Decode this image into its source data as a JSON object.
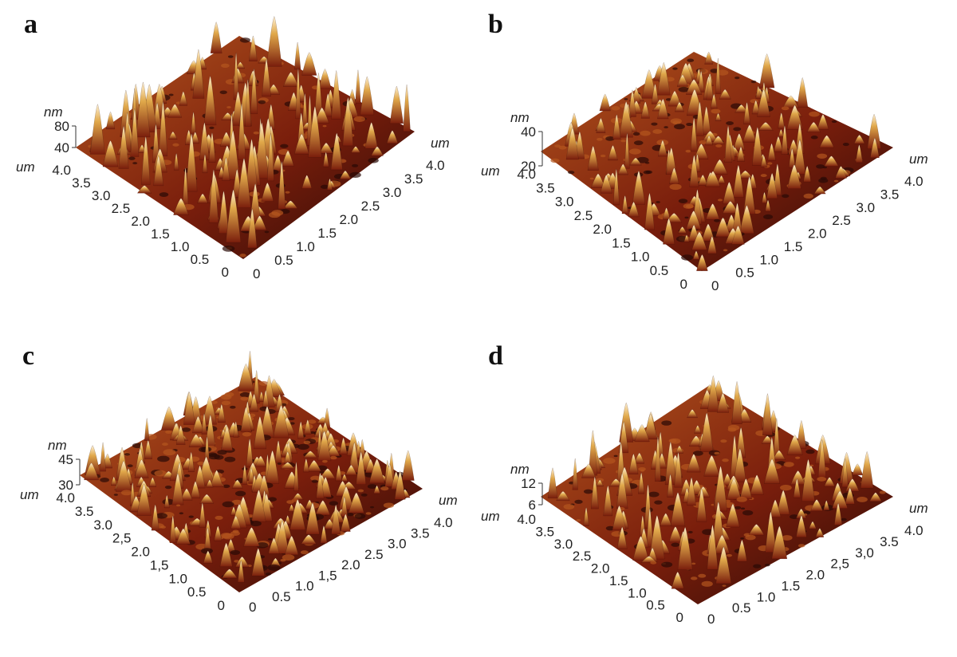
{
  "panels": [
    {
      "label": "a",
      "z_unit": "nm",
      "z_ticks": [
        "80",
        "40"
      ],
      "xy_unit": "um",
      "left_ticks": [
        "4.0",
        "3.5",
        "3.0",
        "2.5",
        "2.0",
        "1.5",
        "1.0",
        "0.5",
        "0"
      ],
      "right_ticks": [
        "0",
        "0.5",
        "1.0",
        "1.5",
        "2.0",
        "2.5",
        "3.0",
        "3.5",
        "4.0"
      ]
    },
    {
      "label": "b",
      "z_unit": "nm",
      "z_ticks": [
        "40",
        "20"
      ],
      "xy_unit": "um",
      "left_ticks": [
        "4.0",
        "3.5",
        "3.0",
        "2.5",
        "2.0",
        "1.5",
        "1.0",
        "0.5",
        "0"
      ],
      "right_ticks": [
        "0",
        "0.5",
        "1.0",
        "1.5",
        "2.0",
        "2.5",
        "3.0",
        "3.5",
        "4.0"
      ]
    },
    {
      "label": "c",
      "z_unit": "nm",
      "z_ticks": [
        "45",
        "30"
      ],
      "xy_unit": "um",
      "left_ticks": [
        "4.0",
        "3.5",
        "3.0",
        "2,5",
        "2.0",
        "1,5",
        "1.0",
        "0.5",
        "0"
      ],
      "right_ticks": [
        "0",
        "0.5",
        "1.0",
        "1,5",
        "2.0",
        "2.5",
        "3.0",
        "3.5",
        "4.0"
      ]
    },
    {
      "label": "d",
      "z_unit": "nm",
      "z_ticks": [
        "12",
        "6"
      ],
      "xy_unit": "um",
      "left_ticks": [
        "4.0",
        "3.5",
        "3.0",
        "2.5",
        "2.0",
        "1.5",
        "1.0",
        "0.5",
        "0"
      ],
      "right_ticks": [
        "0",
        "0.5",
        "1.0",
        "1.5",
        "2.0",
        "2,5",
        "3,0",
        "3.5",
        "4.0"
      ]
    }
  ],
  "colors": {
    "base": "#7a1e0c",
    "mid": "#b4561e",
    "light": "#e0a84a",
    "highlight": "#fff2d6",
    "deep": "#2a0a05"
  }
}
